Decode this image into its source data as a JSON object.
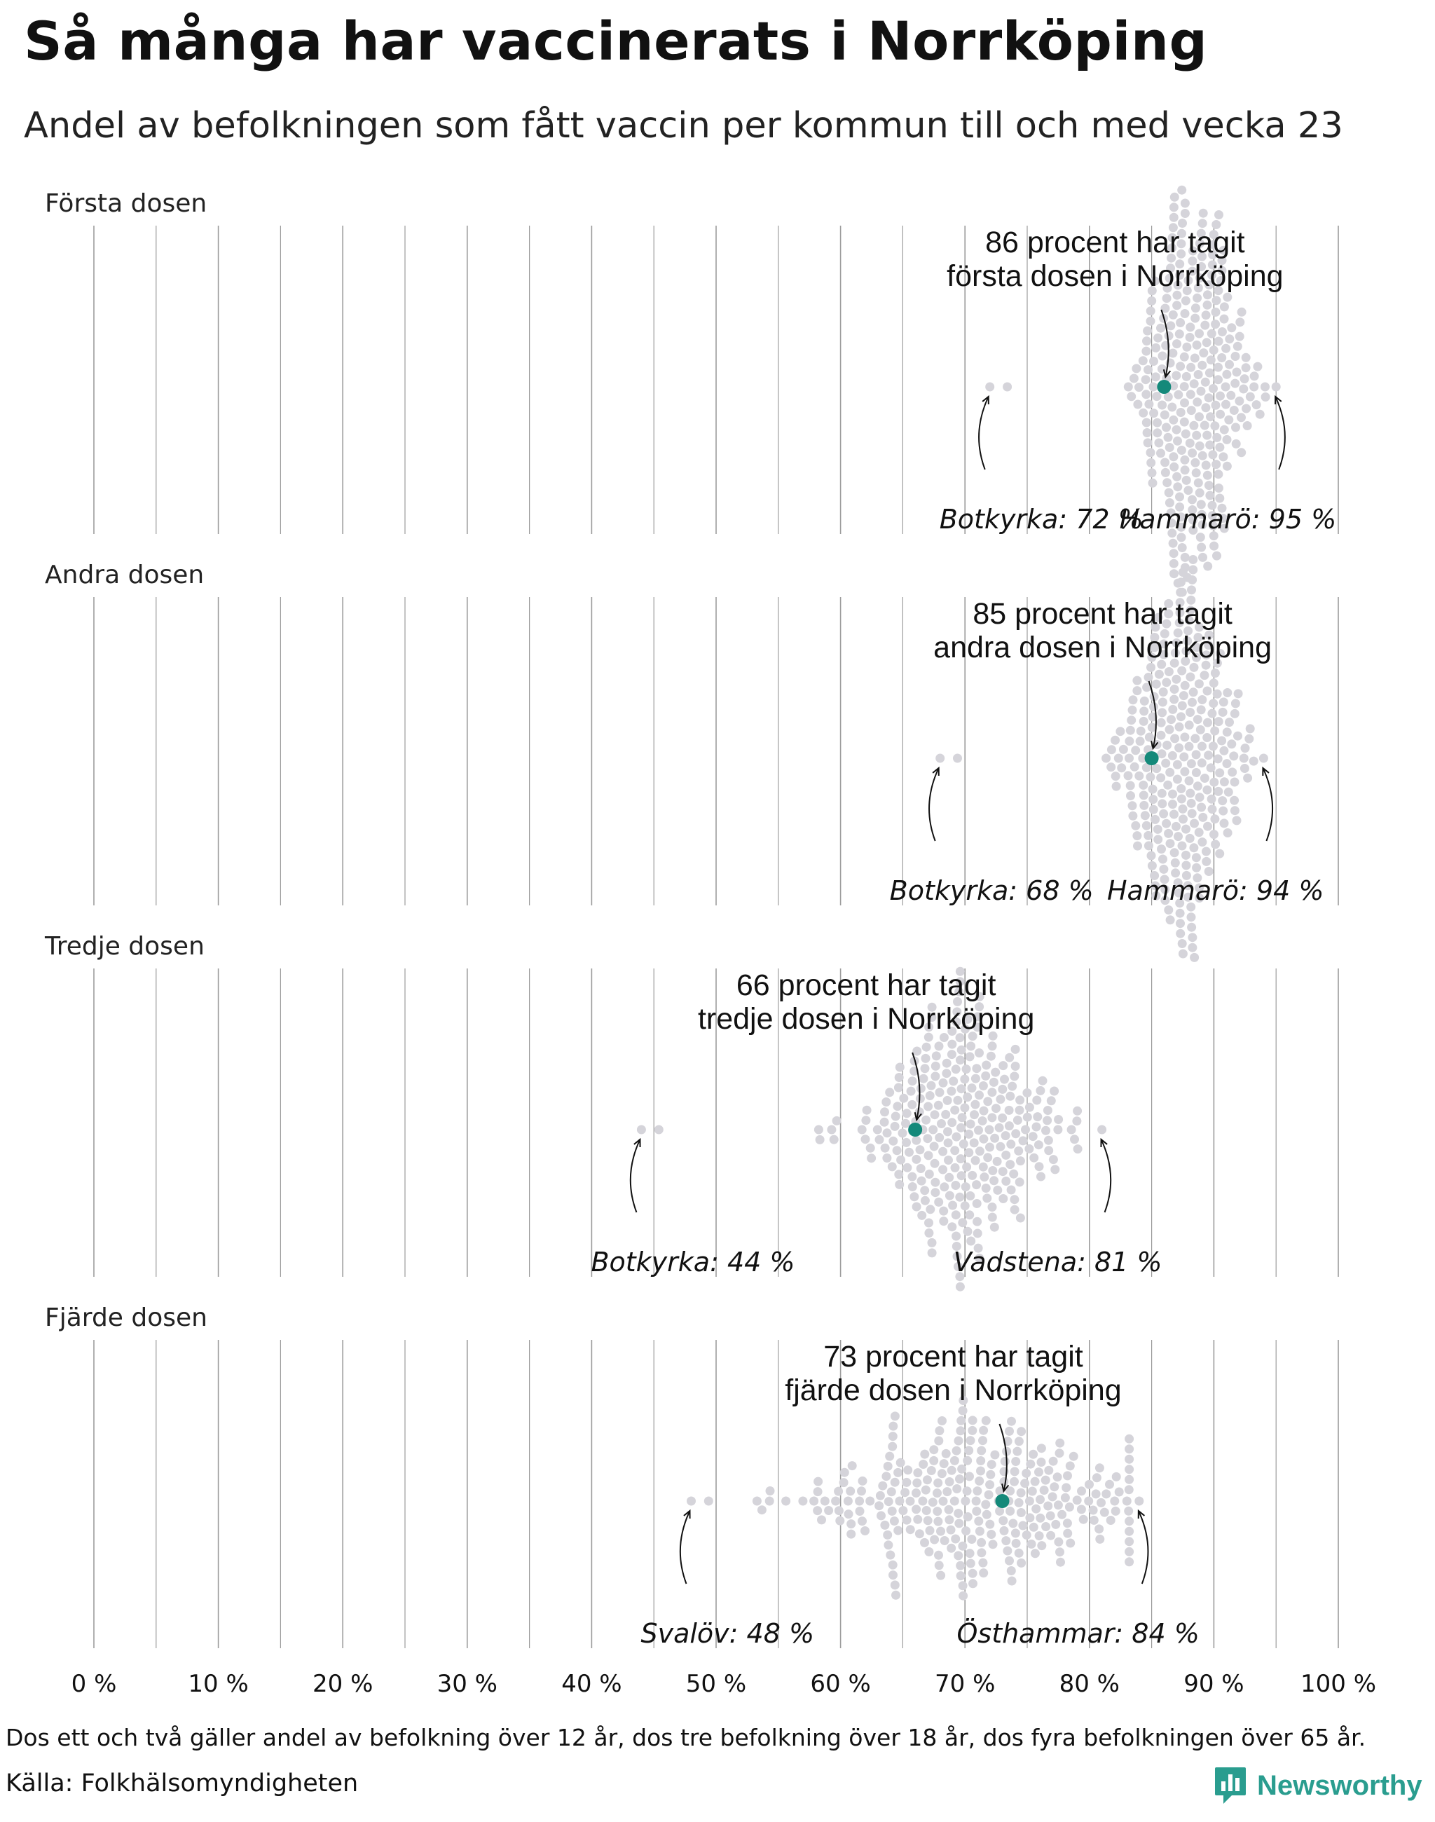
{
  "title": "Så många har vaccinerats i Norrköping",
  "subtitle": "Andel av befolkningen som fått vaccin per kommun till och med vecka 23",
  "footnote": "Dos ett och två gäller andel av befolkning över 12 år, dos tre befolkning över 18 år, dos fyra befolkningen över 65 år.",
  "source": "Källa: Folkhälsomyndigheten",
  "brand": "Newsworthy",
  "colors": {
    "dot": "#d5d4da",
    "highlight": "#14897a",
    "grid": "#8a8a8a",
    "brand": "#2a9d8f"
  },
  "chart_data": {
    "type": "scatter",
    "style": "beeswarm",
    "xlim": [
      0,
      100
    ],
    "x_ticks": [
      "0 %",
      "10 %",
      "20 %",
      "30 %",
      "40 %",
      "50 %",
      "60 %",
      "70 %",
      "80 %",
      "90 %",
      "100 %"
    ],
    "grid": true,
    "panels": [
      {
        "label": "Första dosen",
        "highlight": {
          "name": "Norrköping",
          "value": 86
        },
        "annotation": [
          "86 procent har tagit",
          "första dosen i Norrköping"
        ],
        "min": {
          "label": "Botkyrka: 72 %",
          "value": 72
        },
        "max": {
          "label": "Hammarö: 95 %",
          "value": 95
        },
        "distribution": {
          "mean": 88.5,
          "sd": 2.3,
          "count": 290
        }
      },
      {
        "label": "Andra dosen",
        "highlight": {
          "name": "Norrköping",
          "value": 85
        },
        "annotation": [
          "85 procent har tagit",
          "andra dosen i Norrköping"
        ],
        "min": {
          "label": "Botkyrka: 68 %",
          "value": 68
        },
        "max": {
          "label": "Hammarö: 94 %",
          "value": 94
        },
        "distribution": {
          "mean": 87.2,
          "sd": 2.6,
          "count": 290
        }
      },
      {
        "label": "Tredje dosen",
        "highlight": {
          "name": "Norrköping",
          "value": 66
        },
        "annotation": [
          "66 procent har tagit",
          "tredje dosen i Norrköping"
        ],
        "min": {
          "label": "Botkyrka: 44 %",
          "value": 44
        },
        "max": {
          "label": "Vadstena: 81 %",
          "value": 81
        },
        "distribution": {
          "mean": 69.5,
          "sd": 3.9,
          "count": 290
        }
      },
      {
        "label": "Fjärde dosen",
        "highlight": {
          "name": "Norrköping",
          "value": 73
        },
        "annotation": [
          "73 procent har tagit",
          "fjärde dosen i Norrköping"
        ],
        "min": {
          "label": "Svalöv: 48 %",
          "value": 48
        },
        "max": {
          "label": "Östhammar: 84 %",
          "value": 84
        },
        "distribution": {
          "mean": 70.5,
          "sd": 6.8,
          "count": 290
        }
      }
    ]
  }
}
